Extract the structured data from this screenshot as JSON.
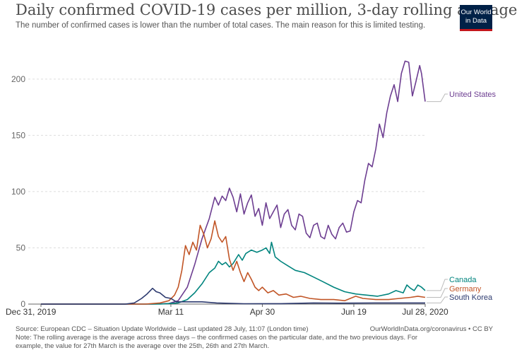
{
  "header": {
    "title": "Daily confirmed COVID-19 cases per million, 3-day rolling average",
    "subtitle": "The number of confirmed cases is lower than the number of total cases. The main reason for this is limited testing.",
    "logo_line1": "Our World",
    "logo_line2": "in Data"
  },
  "footer": {
    "source": "Source: European CDC – Situation Update Worldwide – Last updated 28 July, 11:07 (London time)",
    "source_right": "OurWorldInData.org/coronavirus • CC BY",
    "note_line1": "Note: The rolling average is the average across three days – the confirmed cases on the particular date, and the two previous days. For",
    "note_line2": "example, the value for 27th March is the average over the 25th, 26th and 27th March."
  },
  "chart_data": {
    "type": "line",
    "title": "Daily confirmed COVID-19 cases per million, 3-day rolling average",
    "xlabel": "",
    "ylabel": "",
    "ylim": [
      0,
      220
    ],
    "yticks": [
      0,
      50,
      100,
      150,
      200
    ],
    "x_tick_labels": [
      "Dec 31, 2019",
      "Mar 11",
      "Apr 30",
      "Jun 19",
      "Jul 28, 2020"
    ],
    "x_tick_dates": [
      "2019-12-31",
      "2020-03-11",
      "2020-04-30",
      "2020-06-19",
      "2020-07-28"
    ],
    "grid": true,
    "series": [
      {
        "name": "United States",
        "color": "#6d3e91",
        "points": [
          [
            "2019-12-31",
            0
          ],
          [
            "2020-03-01",
            0
          ],
          [
            "2020-03-10",
            0.5
          ],
          [
            "2020-03-15",
            3
          ],
          [
            "2020-03-20",
            15
          ],
          [
            "2020-03-24",
            35
          ],
          [
            "2020-03-28",
            58
          ],
          [
            "2020-04-01",
            76
          ],
          [
            "2020-04-04",
            95
          ],
          [
            "2020-04-06",
            88
          ],
          [
            "2020-04-08",
            96
          ],
          [
            "2020-04-10",
            92
          ],
          [
            "2020-04-12",
            103
          ],
          [
            "2020-04-14",
            95
          ],
          [
            "2020-04-16",
            82
          ],
          [
            "2020-04-18",
            98
          ],
          [
            "2020-04-20",
            80
          ],
          [
            "2020-04-22",
            90
          ],
          [
            "2020-04-24",
            97
          ],
          [
            "2020-04-26",
            78
          ],
          [
            "2020-04-28",
            85
          ],
          [
            "2020-04-30",
            70
          ],
          [
            "2020-05-02",
            90
          ],
          [
            "2020-05-04",
            76
          ],
          [
            "2020-05-06",
            82
          ],
          [
            "2020-05-08",
            88
          ],
          [
            "2020-05-10",
            68
          ],
          [
            "2020-05-12",
            80
          ],
          [
            "2020-05-14",
            84
          ],
          [
            "2020-05-16",
            70
          ],
          [
            "2020-05-18",
            66
          ],
          [
            "2020-05-20",
            80
          ],
          [
            "2020-05-22",
            78
          ],
          [
            "2020-05-24",
            63
          ],
          [
            "2020-05-26",
            59
          ],
          [
            "2020-05-28",
            70
          ],
          [
            "2020-05-30",
            72
          ],
          [
            "2020-06-01",
            60
          ],
          [
            "2020-06-03",
            58
          ],
          [
            "2020-06-05",
            70
          ],
          [
            "2020-06-07",
            62
          ],
          [
            "2020-06-09",
            58
          ],
          [
            "2020-06-11",
            68
          ],
          [
            "2020-06-13",
            72
          ],
          [
            "2020-06-15",
            64
          ],
          [
            "2020-06-17",
            65
          ],
          [
            "2020-06-19",
            82
          ],
          [
            "2020-06-21",
            92
          ],
          [
            "2020-06-23",
            90
          ],
          [
            "2020-06-25",
            110
          ],
          [
            "2020-06-27",
            125
          ],
          [
            "2020-06-29",
            122
          ],
          [
            "2020-07-01",
            138
          ],
          [
            "2020-07-03",
            160
          ],
          [
            "2020-07-05",
            148
          ],
          [
            "2020-07-07",
            170
          ],
          [
            "2020-07-09",
            185
          ],
          [
            "2020-07-11",
            195
          ],
          [
            "2020-07-13",
            180
          ],
          [
            "2020-07-15",
            205
          ],
          [
            "2020-07-17",
            216
          ],
          [
            "2020-07-19",
            215
          ],
          [
            "2020-07-21",
            185
          ],
          [
            "2020-07-23",
            198
          ],
          [
            "2020-07-25",
            212
          ],
          [
            "2020-07-26",
            205
          ],
          [
            "2020-07-28",
            180
          ]
        ]
      },
      {
        "name": "Canada",
        "color": "#00847e",
        "points": [
          [
            "2019-12-31",
            0
          ],
          [
            "2020-03-05",
            0
          ],
          [
            "2020-03-10",
            0.5
          ],
          [
            "2020-03-15",
            1
          ],
          [
            "2020-03-20",
            4
          ],
          [
            "2020-03-24",
            10
          ],
          [
            "2020-03-28",
            18
          ],
          [
            "2020-04-01",
            28
          ],
          [
            "2020-04-04",
            32
          ],
          [
            "2020-04-06",
            38
          ],
          [
            "2020-04-08",
            35
          ],
          [
            "2020-04-10",
            37
          ],
          [
            "2020-04-12",
            33
          ],
          [
            "2020-04-14",
            36
          ],
          [
            "2020-04-17",
            44
          ],
          [
            "2020-04-19",
            39
          ],
          [
            "2020-04-21",
            45
          ],
          [
            "2020-04-24",
            48
          ],
          [
            "2020-04-27",
            46
          ],
          [
            "2020-04-30",
            48
          ],
          [
            "2020-05-02",
            50
          ],
          [
            "2020-05-04",
            45
          ],
          [
            "2020-05-05",
            55
          ],
          [
            "2020-05-07",
            42
          ],
          [
            "2020-05-10",
            38
          ],
          [
            "2020-05-14",
            34
          ],
          [
            "2020-05-18",
            30
          ],
          [
            "2020-05-23",
            28
          ],
          [
            "2020-05-28",
            24
          ],
          [
            "2020-06-02",
            20
          ],
          [
            "2020-06-08",
            15
          ],
          [
            "2020-06-14",
            11
          ],
          [
            "2020-06-20",
            9
          ],
          [
            "2020-06-26",
            8
          ],
          [
            "2020-07-02",
            7
          ],
          [
            "2020-07-08",
            9
          ],
          [
            "2020-07-12",
            12
          ],
          [
            "2020-07-16",
            10
          ],
          [
            "2020-07-18",
            17
          ],
          [
            "2020-07-20",
            14
          ],
          [
            "2020-07-22",
            12
          ],
          [
            "2020-07-24",
            17
          ],
          [
            "2020-07-26",
            15
          ],
          [
            "2020-07-28",
            12
          ]
        ]
      },
      {
        "name": "Germany",
        "color": "#c15526",
        "points": [
          [
            "2019-12-31",
            0
          ],
          [
            "2020-02-26",
            0
          ],
          [
            "2020-03-05",
            1
          ],
          [
            "2020-03-10",
            3
          ],
          [
            "2020-03-13",
            8
          ],
          [
            "2020-03-15",
            15
          ],
          [
            "2020-03-17",
            30
          ],
          [
            "2020-03-19",
            52
          ],
          [
            "2020-03-21",
            44
          ],
          [
            "2020-03-23",
            55
          ],
          [
            "2020-03-25",
            48
          ],
          [
            "2020-03-27",
            70
          ],
          [
            "2020-03-29",
            62
          ],
          [
            "2020-03-31",
            50
          ],
          [
            "2020-04-02",
            58
          ],
          [
            "2020-04-04",
            74
          ],
          [
            "2020-04-06",
            60
          ],
          [
            "2020-04-08",
            55
          ],
          [
            "2020-04-10",
            60
          ],
          [
            "2020-04-12",
            40
          ],
          [
            "2020-04-14",
            30
          ],
          [
            "2020-04-16",
            38
          ],
          [
            "2020-04-18",
            28
          ],
          [
            "2020-04-20",
            20
          ],
          [
            "2020-04-22",
            28
          ],
          [
            "2020-04-24",
            22
          ],
          [
            "2020-04-26",
            15
          ],
          [
            "2020-04-28",
            12
          ],
          [
            "2020-04-30",
            15
          ],
          [
            "2020-05-03",
            10
          ],
          [
            "2020-05-06",
            12
          ],
          [
            "2020-05-09",
            8
          ],
          [
            "2020-05-13",
            9
          ],
          [
            "2020-05-17",
            6
          ],
          [
            "2020-05-21",
            7
          ],
          [
            "2020-05-26",
            5
          ],
          [
            "2020-06-01",
            4
          ],
          [
            "2020-06-08",
            4
          ],
          [
            "2020-06-14",
            3
          ],
          [
            "2020-06-20",
            7
          ],
          [
            "2020-06-24",
            5
          ],
          [
            "2020-07-01",
            4
          ],
          [
            "2020-07-08",
            4
          ],
          [
            "2020-07-14",
            5
          ],
          [
            "2020-07-20",
            6
          ],
          [
            "2020-07-24",
            7
          ],
          [
            "2020-07-28",
            6
          ]
        ]
      },
      {
        "name": "South Korea",
        "color": "#2d3a6f",
        "points": [
          [
            "2019-12-31",
            0
          ],
          [
            "2020-02-15",
            0
          ],
          [
            "2020-02-20",
            1
          ],
          [
            "2020-02-24",
            5
          ],
          [
            "2020-02-27",
            9
          ],
          [
            "2020-03-01",
            14
          ],
          [
            "2020-03-03",
            11
          ],
          [
            "2020-03-05",
            10
          ],
          [
            "2020-03-08",
            6
          ],
          [
            "2020-03-11",
            5
          ],
          [
            "2020-03-14",
            2
          ],
          [
            "2020-03-20",
            2
          ],
          [
            "2020-03-28",
            2
          ],
          [
            "2020-04-05",
            1
          ],
          [
            "2020-04-20",
            0.3
          ],
          [
            "2020-05-10",
            0.4
          ],
          [
            "2020-05-28",
            1
          ],
          [
            "2020-06-10",
            0.8
          ],
          [
            "2020-06-30",
            1
          ],
          [
            "2020-07-28",
            1
          ]
        ]
      }
    ]
  }
}
